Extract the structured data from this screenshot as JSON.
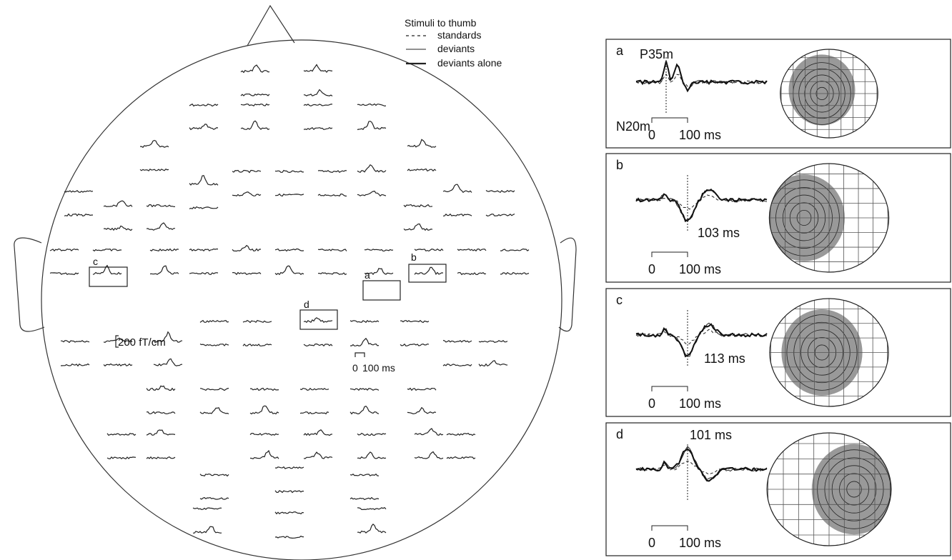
{
  "legend": {
    "title": "Stimuli to thumb",
    "items": [
      "standards",
      "deviants",
      "deviants alone"
    ]
  },
  "sensor_map": {
    "box_labels": [
      "c",
      "a",
      "b",
      "d"
    ],
    "amplitude_scale": "200 fT/cm",
    "time_scale": {
      "start": "0",
      "end": "100 ms"
    }
  },
  "panels": [
    {
      "letter": "a",
      "labels": [
        "P35m",
        "N20m"
      ],
      "time_scale": {
        "start": "0",
        "end": "100 ms"
      }
    },
    {
      "letter": "b",
      "labels": [
        "103 ms"
      ],
      "time_scale": {
        "start": "0",
        "end": "100 ms"
      }
    },
    {
      "letter": "c",
      "labels": [
        "113 ms"
      ],
      "time_scale": {
        "start": "0",
        "end": "100 ms"
      }
    },
    {
      "letter": "d",
      "labels": [
        "101 ms"
      ],
      "time_scale": {
        "start": "0",
        "end": "100 ms"
      }
    }
  ]
}
